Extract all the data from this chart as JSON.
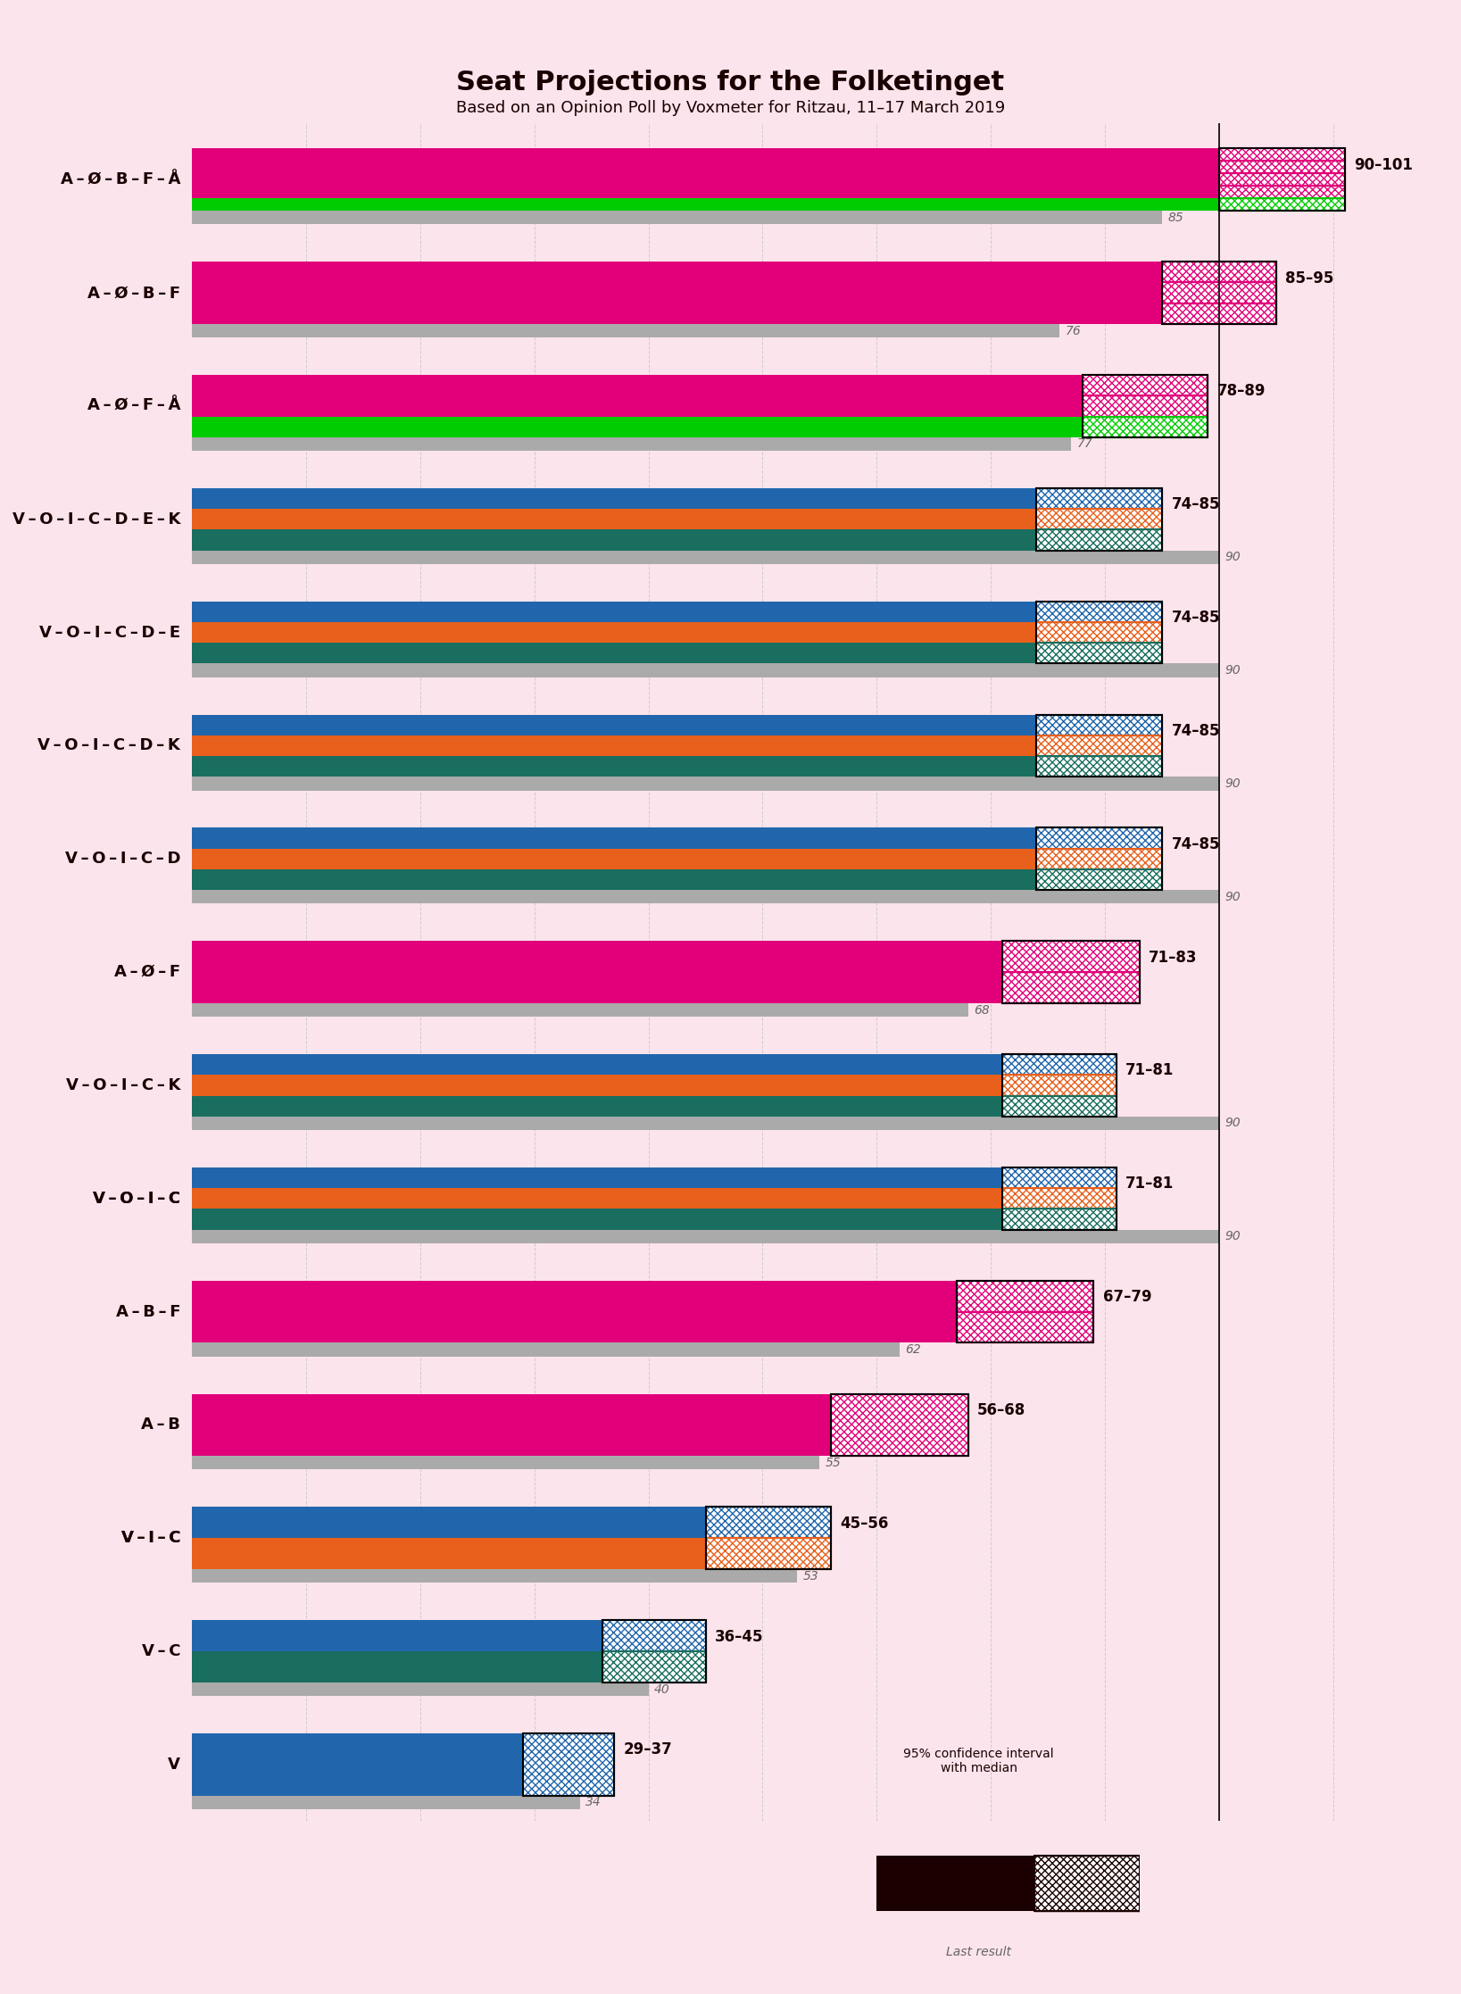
{
  "title": "Seat Projections for the Folketinget",
  "subtitle": "Based on an Opinion Poll by Voxmeter for Ritzau, 11–17 March 2019",
  "background_color": "#fce4ec",
  "title_color": "#1a0000",
  "coalitions": [
    {
      "label": "A – Ø – B – F – Å",
      "low": 90,
      "high": 101,
      "last": 85,
      "colors": [
        "#e2007a",
        "#e2007a",
        "#e2007a",
        "#e2007a",
        "#00cc00"
      ],
      "underline": false
    },
    {
      "label": "A – Ø – B – F",
      "low": 85,
      "high": 95,
      "last": 76,
      "colors": [
        "#e2007a",
        "#e2007a",
        "#e2007a"
      ],
      "underline": false
    },
    {
      "label": "A – Ø – F – Å",
      "low": 78,
      "high": 89,
      "last": 77,
      "colors": [
        "#e2007a",
        "#e2007a",
        "#00cc00"
      ],
      "underline": false
    },
    {
      "label": "V – O – I – C – D – E – K",
      "low": 74,
      "high": 85,
      "last": 90,
      "colors": [
        "#2166ac",
        "#e8601c",
        "#1a6e5f"
      ],
      "underline": false
    },
    {
      "label": "V – O – I – C – D – E",
      "low": 74,
      "high": 85,
      "last": 90,
      "colors": [
        "#2166ac",
        "#e8601c",
        "#1a6e5f"
      ],
      "underline": false
    },
    {
      "label": "V – O – I – C – D – K",
      "low": 74,
      "high": 85,
      "last": 90,
      "colors": [
        "#2166ac",
        "#e8601c",
        "#1a6e5f"
      ],
      "underline": false
    },
    {
      "label": "V – O – I – C – D",
      "low": 74,
      "high": 85,
      "last": 90,
      "colors": [
        "#2166ac",
        "#e8601c",
        "#1a6e5f"
      ],
      "underline": false
    },
    {
      "label": "A – Ø – F",
      "low": 71,
      "high": 83,
      "last": 68,
      "colors": [
        "#e2007a",
        "#e2007a"
      ],
      "underline": false
    },
    {
      "label": "V – O – I – C – K",
      "low": 71,
      "high": 81,
      "last": 90,
      "colors": [
        "#2166ac",
        "#e8601c",
        "#1a6e5f"
      ],
      "underline": false
    },
    {
      "label": "V – O – I – C",
      "low": 71,
      "high": 81,
      "last": 90,
      "colors": [
        "#2166ac",
        "#e8601c",
        "#1a6e5f"
      ],
      "underline": true
    },
    {
      "label": "A – B – F",
      "low": 67,
      "high": 79,
      "last": 62,
      "colors": [
        "#e2007a",
        "#e2007a"
      ],
      "underline": false
    },
    {
      "label": "A – B",
      "low": 56,
      "high": 68,
      "last": 55,
      "colors": [
        "#e2007a"
      ],
      "underline": false
    },
    {
      "label": "V – I – C",
      "low": 45,
      "high": 56,
      "last": 53,
      "colors": [
        "#2166ac",
        "#e8601c"
      ],
      "underline": true
    },
    {
      "label": "V – C",
      "low": 36,
      "high": 45,
      "last": 40,
      "colors": [
        "#2166ac",
        "#1a6e5f"
      ],
      "underline": false
    },
    {
      "label": "V",
      "low": 29,
      "high": 37,
      "last": 34,
      "colors": [
        "#2166ac"
      ],
      "underline": false
    }
  ],
  "xmax": 110,
  "majority_line": 90,
  "bar_height": 0.55,
  "ci_box_color_left_red": "#cc0033",
  "ci_box_color_blue": "#2166ac",
  "grid_color": "#cccccc",
  "last_bar_color": "#aaaaaa",
  "text_color": "#1a0000"
}
